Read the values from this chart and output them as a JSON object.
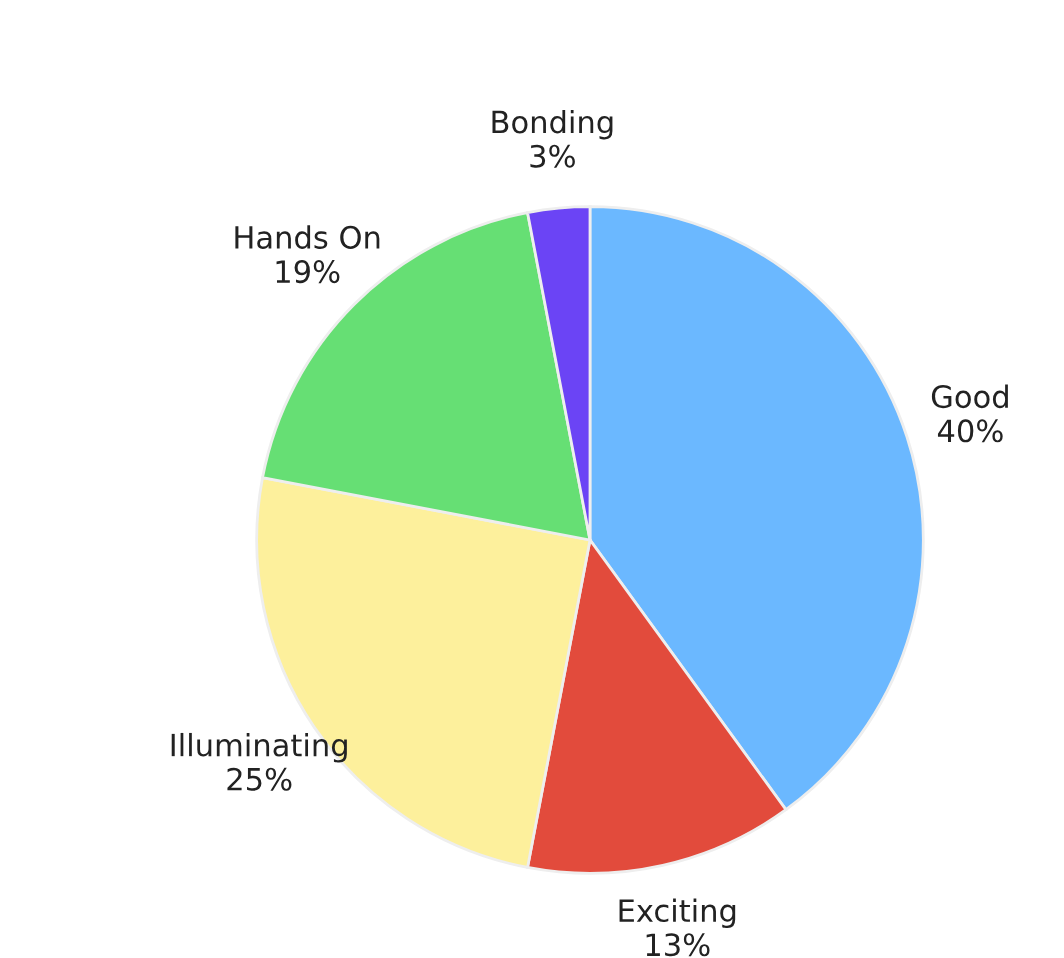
{
  "chart_data": {
    "type": "pie",
    "categories": [
      "Good",
      "Exciting",
      "Illuminating",
      "Hands On",
      "Bonding"
    ],
    "values": [
      40,
      13,
      25,
      19,
      3
    ],
    "value_labels": [
      "40%",
      "13%",
      "25%",
      "19%",
      "3%"
    ],
    "colors": [
      "#6bb8ff",
      "#e24b3c",
      "#fdf09c",
      "#66df74",
      "#6b44f5"
    ]
  }
}
